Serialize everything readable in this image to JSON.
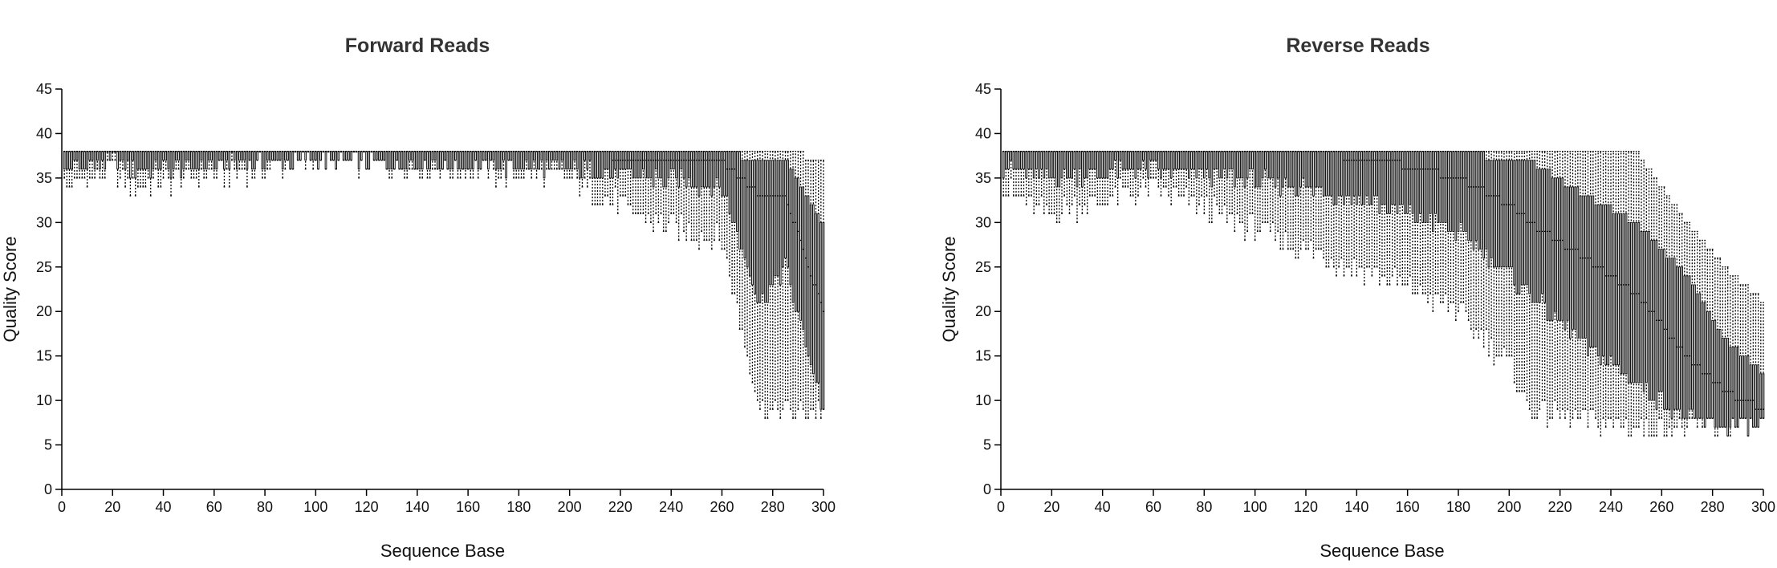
{
  "chart_data": [
    {
      "type": "boxplot",
      "title": "Forward Reads",
      "xlabel": "Sequence Base",
      "ylabel": "Quality Score",
      "xlim": [
        0,
        300
      ],
      "ylim": [
        0,
        45
      ],
      "x_ticks": [
        0,
        20,
        40,
        60,
        80,
        100,
        120,
        140,
        160,
        180,
        200,
        220,
        240,
        260,
        280,
        300
      ],
      "y_ticks": [
        0,
        5,
        10,
        15,
        20,
        25,
        30,
        35,
        40,
        45
      ],
      "grid": false,
      "series_summary": [
        {
          "x": 1,
          "whisker_low": 34,
          "q1": 36,
          "median": 38,
          "q3": 38,
          "whisker_high": 38
        },
        {
          "x": 20,
          "whisker_low": 36,
          "q1": 37,
          "median": 38,
          "q3": 38,
          "whisker_high": 38
        },
        {
          "x": 26,
          "whisker_low": 34,
          "q1": 36,
          "median": 38,
          "q3": 38,
          "whisker_high": 38
        },
        {
          "x": 100,
          "whisker_low": 37,
          "q1": 37,
          "median": 38,
          "q3": 38,
          "whisker_high": 38
        },
        {
          "x": 200,
          "whisker_low": 35,
          "q1": 36,
          "median": 38,
          "q3": 38,
          "whisker_high": 38
        },
        {
          "x": 233,
          "whisker_low": 30,
          "q1": 35,
          "median": 37,
          "q3": 38,
          "whisker_high": 38
        },
        {
          "x": 260,
          "whisker_low": 28,
          "q1": 34,
          "median": 37,
          "q3": 38,
          "whisker_high": 38
        },
        {
          "x": 275,
          "whisker_low": 9,
          "q1": 21,
          "median": 33,
          "q3": 37,
          "whisker_high": 38
        },
        {
          "x": 285,
          "whisker_low": 9,
          "q1": 25,
          "median": 33,
          "q3": 37,
          "whisker_high": 38
        },
        {
          "x": 300,
          "whisker_low": 9,
          "q1": 9,
          "median": 20,
          "q3": 30,
          "whisker_high": 37
        }
      ]
    },
    {
      "type": "boxplot",
      "title": "Reverse Reads",
      "xlabel": "Sequence Base",
      "ylabel": "Quality Score",
      "xlim": [
        0,
        300
      ],
      "ylim": [
        0,
        45
      ],
      "x_ticks": [
        0,
        20,
        40,
        60,
        80,
        100,
        120,
        140,
        160,
        180,
        200,
        220,
        240,
        260,
        280,
        300
      ],
      "y_ticks": [
        0,
        5,
        10,
        15,
        20,
        25,
        30,
        35,
        40,
        45
      ],
      "grid": false,
      "series_summary": [
        {
          "x": 1,
          "whisker_low": 34,
          "q1": 36,
          "median": 38,
          "q3": 38,
          "whisker_high": 38
        },
        {
          "x": 17,
          "whisker_low": 31,
          "q1": 35,
          "median": 38,
          "q3": 38,
          "whisker_high": 38
        },
        {
          "x": 60,
          "whisker_low": 34,
          "q1": 36,
          "median": 38,
          "q3": 38,
          "whisker_high": 38
        },
        {
          "x": 119,
          "whisker_low": 27,
          "q1": 34,
          "median": 38,
          "q3": 38,
          "whisker_high": 38
        },
        {
          "x": 150,
          "whisker_low": 24,
          "q1": 32,
          "median": 37,
          "q3": 38,
          "whisker_high": 38
        },
        {
          "x": 180,
          "whisker_low": 20,
          "q1": 29,
          "median": 35,
          "q3": 38,
          "whisker_high": 38
        },
        {
          "x": 200,
          "whisker_low": 14,
          "q1": 24,
          "median": 32,
          "q3": 37,
          "whisker_high": 38
        },
        {
          "x": 208,
          "whisker_low": 9,
          "q1": 22,
          "median": 30,
          "q3": 37,
          "whisker_high": 38
        },
        {
          "x": 230,
          "whisker_low": 8,
          "q1": 16,
          "median": 26,
          "q3": 33,
          "whisker_high": 38
        },
        {
          "x": 250,
          "whisker_low": 7,
          "q1": 12,
          "median": 22,
          "q3": 30,
          "whisker_high": 38
        },
        {
          "x": 270,
          "whisker_low": 7,
          "q1": 8,
          "median": 15,
          "q3": 24,
          "whisker_high": 30
        },
        {
          "x": 285,
          "whisker_low": 7,
          "q1": 7,
          "median": 11,
          "q3": 17,
          "whisker_high": 25
        },
        {
          "x": 300,
          "whisker_low": 7,
          "q1": 7,
          "median": 9,
          "q3": 13,
          "whisker_high": 21
        }
      ]
    }
  ]
}
